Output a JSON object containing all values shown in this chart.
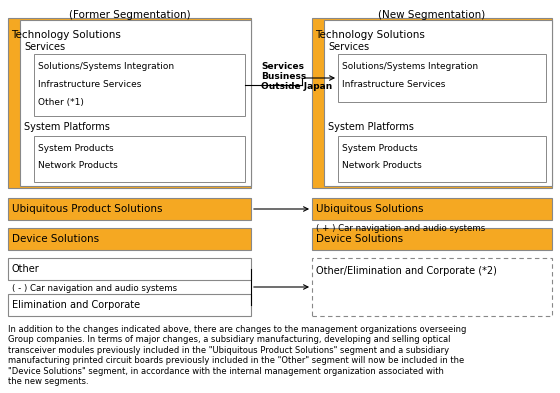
{
  "title_left": "(Former Segmentation)",
  "title_right": "(New Segmentation)",
  "bg_color": "#ffffff",
  "orange": "#F5A822",
  "white": "#FFFFFF",
  "gray": "#888888",
  "black": "#000000",
  "footnote": "In addition to the changes indicated above, there are changes to the management organizations overseeing\nGroup companies. In terms of major changes, a subsidiary manufacturing, developing and selling optical\ntransceiver modules previously included in the \"Ubiquitous Product Solutions\" segment and a subsidiary\nmanufacturing printed circuit boards previously included in the \"Other\" segment will now be included in the\n\"Device Solutions\" segment, in accordance with the internal management organization associated with\nthe new segments."
}
